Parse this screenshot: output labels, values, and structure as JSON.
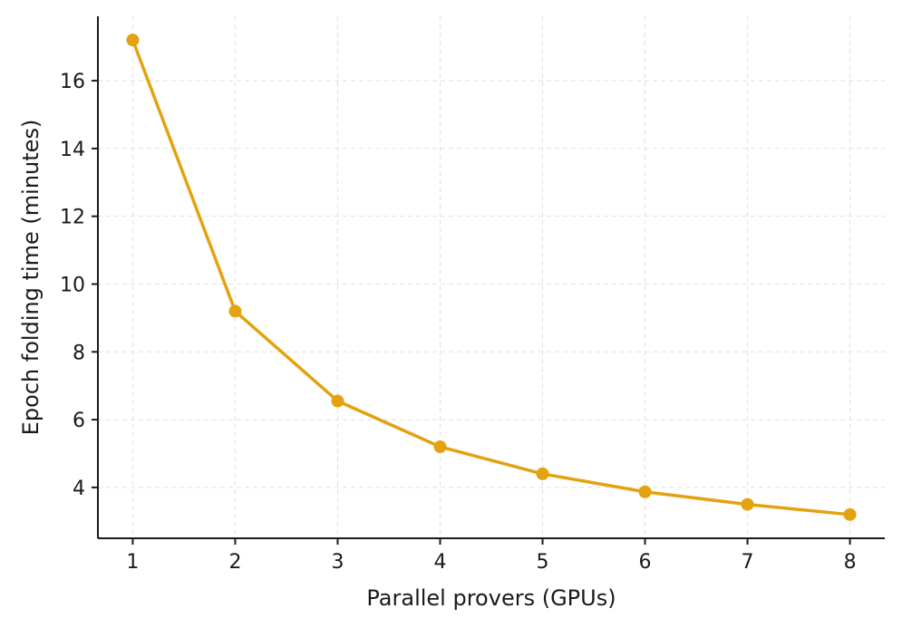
{
  "chart_data": {
    "type": "line",
    "title": "",
    "xlabel": "Parallel provers (GPUs)",
    "ylabel": "Epoch folding time (minutes)",
    "x": [
      1,
      2,
      3,
      4,
      5,
      6,
      7,
      8
    ],
    "series": [
      {
        "values": [
          17.2,
          9.2,
          6.55,
          5.2,
          4.4,
          3.87,
          3.5,
          3.2
        ],
        "color": "#E3A20F"
      }
    ],
    "xlim": [
      0.66,
      8.34
    ],
    "ylim": [
      2.5,
      17.9
    ],
    "xticks": [
      1,
      2,
      3,
      4,
      5,
      6,
      7,
      8
    ],
    "yticks": [
      4,
      6,
      8,
      10,
      12,
      14,
      16
    ],
    "grid": true,
    "legend": "none"
  }
}
